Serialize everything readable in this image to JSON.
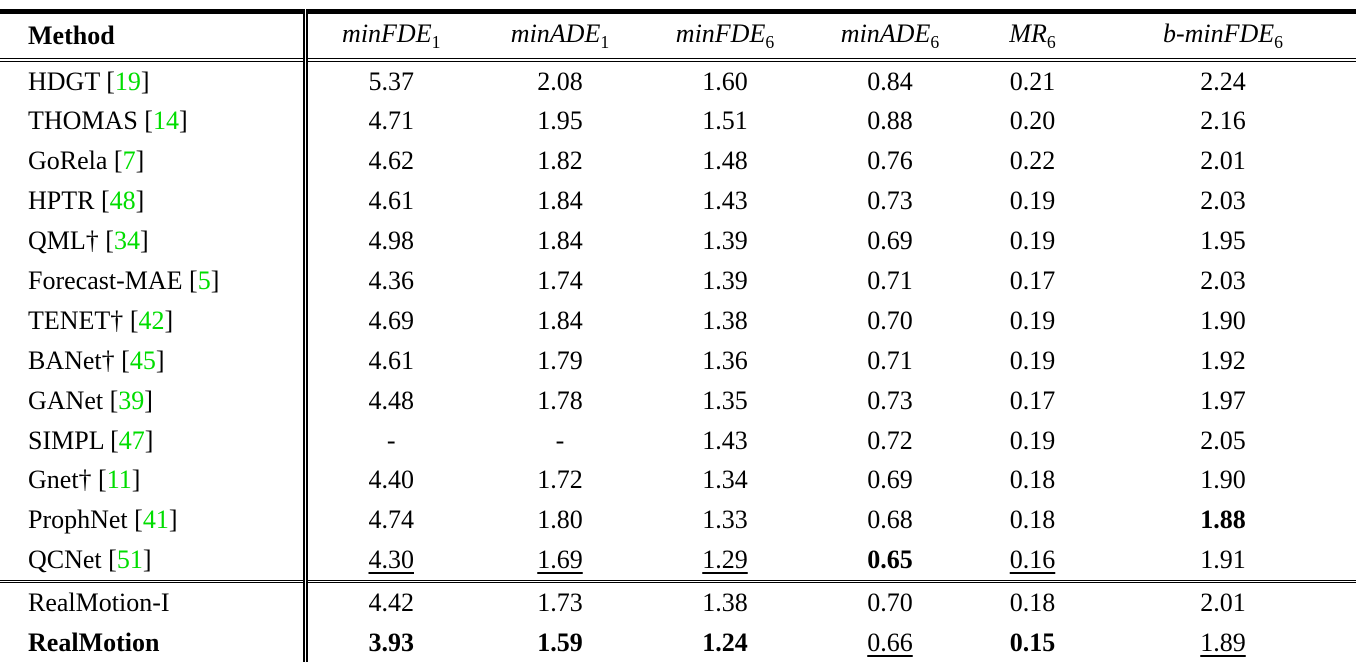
{
  "colors": {
    "citation_green": "#00dd00",
    "text": "#000000",
    "background": "#ffffff"
  },
  "table": {
    "header": [
      {
        "label": "Method",
        "sub": null,
        "bold": true,
        "italic": false
      },
      {
        "label": "minFDE",
        "sub": "1",
        "bold": false,
        "italic": true
      },
      {
        "label": "minADE",
        "sub": "1",
        "bold": false,
        "italic": true
      },
      {
        "label": "minFDE",
        "sub": "6",
        "bold": false,
        "italic": true
      },
      {
        "label": "minADE",
        "sub": "6",
        "bold": false,
        "italic": true
      },
      {
        "label": "MR",
        "sub": "6",
        "bold": false,
        "italic": true
      },
      {
        "label": "b-minFDE",
        "sub": "6",
        "bold": false,
        "italic": true
      }
    ],
    "rows": [
      {
        "method": "HDGT",
        "cite": "19",
        "bold_method": false,
        "group_start": false,
        "values": [
          "5.37",
          "2.08",
          "1.60",
          "0.84",
          "0.21",
          "2.24"
        ],
        "styles": [
          "",
          "",
          "",
          "",
          "",
          ""
        ]
      },
      {
        "method": "THOMAS",
        "cite": "14",
        "bold_method": false,
        "group_start": false,
        "values": [
          "4.71",
          "1.95",
          "1.51",
          "0.88",
          "0.20",
          "2.16"
        ],
        "styles": [
          "",
          "",
          "",
          "",
          "",
          ""
        ]
      },
      {
        "method": "GoRela",
        "cite": "7",
        "bold_method": false,
        "group_start": false,
        "values": [
          "4.62",
          "1.82",
          "1.48",
          "0.76",
          "0.22",
          "2.01"
        ],
        "styles": [
          "",
          "",
          "",
          "",
          "",
          ""
        ]
      },
      {
        "method": "HPTR",
        "cite": "48",
        "bold_method": false,
        "group_start": false,
        "values": [
          "4.61",
          "1.84",
          "1.43",
          "0.73",
          "0.19",
          "2.03"
        ],
        "styles": [
          "",
          "",
          "",
          "",
          "",
          ""
        ]
      },
      {
        "method": "QML†",
        "cite": "34",
        "bold_method": false,
        "group_start": false,
        "values": [
          "4.98",
          "1.84",
          "1.39",
          "0.69",
          "0.19",
          "1.95"
        ],
        "styles": [
          "",
          "",
          "",
          "",
          "",
          ""
        ]
      },
      {
        "method": "Forecast-MAE",
        "cite": "5",
        "bold_method": false,
        "group_start": false,
        "values": [
          "4.36",
          "1.74",
          "1.39",
          "0.71",
          "0.17",
          "2.03"
        ],
        "styles": [
          "",
          "",
          "",
          "",
          "",
          ""
        ]
      },
      {
        "method": "TENET†",
        "cite": "42",
        "bold_method": false,
        "group_start": false,
        "values": [
          "4.69",
          "1.84",
          "1.38",
          "0.70",
          "0.19",
          "1.90"
        ],
        "styles": [
          "",
          "",
          "",
          "",
          "",
          ""
        ]
      },
      {
        "method": "BANet†",
        "cite": "45",
        "bold_method": false,
        "group_start": false,
        "values": [
          "4.61",
          "1.79",
          "1.36",
          "0.71",
          "0.19",
          "1.92"
        ],
        "styles": [
          "",
          "",
          "",
          "",
          "",
          ""
        ]
      },
      {
        "method": "GANet",
        "cite": "39",
        "bold_method": false,
        "group_start": false,
        "values": [
          "4.48",
          "1.78",
          "1.35",
          "0.73",
          "0.17",
          "1.97"
        ],
        "styles": [
          "",
          "",
          "",
          "",
          "",
          ""
        ]
      },
      {
        "method": "SIMPL",
        "cite": "47",
        "bold_method": false,
        "group_start": false,
        "values": [
          "-",
          "-",
          "1.43",
          "0.72",
          "0.19",
          "2.05"
        ],
        "styles": [
          "",
          "",
          "",
          "",
          "",
          ""
        ]
      },
      {
        "method": "Gnet†",
        "cite": "11",
        "bold_method": false,
        "group_start": false,
        "values": [
          "4.40",
          "1.72",
          "1.34",
          "0.69",
          "0.18",
          "1.90"
        ],
        "styles": [
          "",
          "",
          "",
          "",
          "",
          ""
        ]
      },
      {
        "method": "ProphNet",
        "cite": "41",
        "bold_method": false,
        "group_start": false,
        "values": [
          "4.74",
          "1.80",
          "1.33",
          "0.68",
          "0.18",
          "1.88"
        ],
        "styles": [
          "",
          "",
          "",
          "",
          "",
          "b"
        ]
      },
      {
        "method": "QCNet",
        "cite": "51",
        "bold_method": false,
        "group_start": false,
        "values": [
          "4.30",
          "1.69",
          "1.29",
          "0.65",
          "0.16",
          "1.91"
        ],
        "styles": [
          "u",
          "u",
          "u",
          "b",
          "u",
          ""
        ]
      },
      {
        "method": "RealMotion-I",
        "cite": null,
        "bold_method": false,
        "group_start": true,
        "values": [
          "4.42",
          "1.73",
          "1.38",
          "0.70",
          "0.18",
          "2.01"
        ],
        "styles": [
          "",
          "",
          "",
          "",
          "",
          ""
        ]
      },
      {
        "method": "RealMotion",
        "cite": null,
        "bold_method": true,
        "group_start": false,
        "values": [
          "3.93",
          "1.59",
          "1.24",
          "0.66",
          "0.15",
          "1.89"
        ],
        "styles": [
          "b",
          "b",
          "b",
          "u",
          "b",
          "u"
        ]
      }
    ]
  }
}
